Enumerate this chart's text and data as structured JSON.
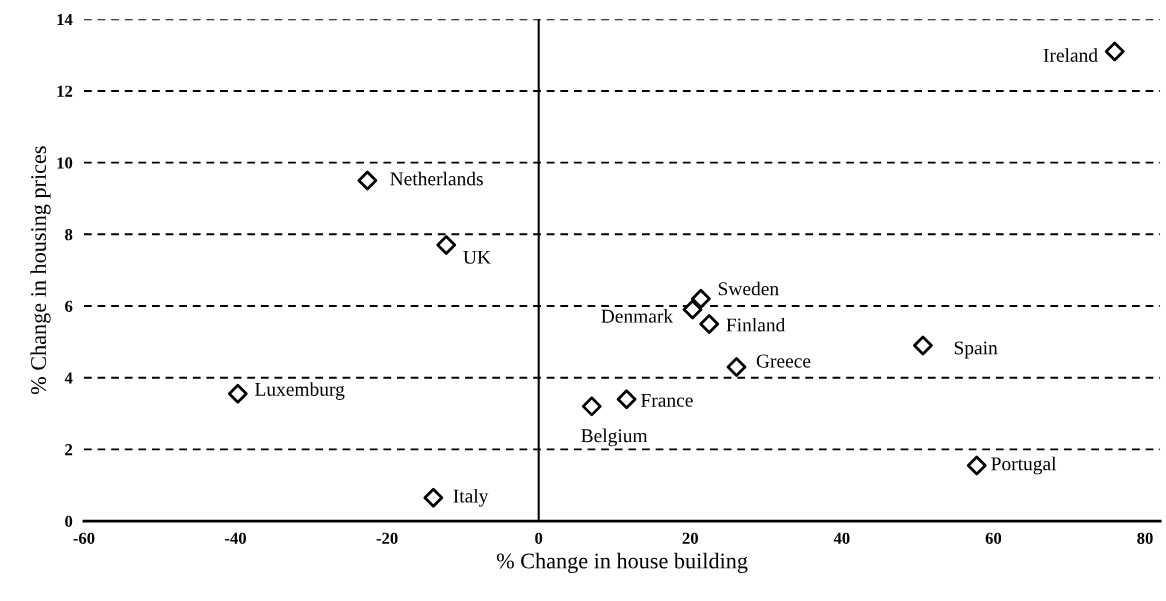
{
  "chart_data": {
    "type": "scatter",
    "xlabel": "% Change in house building",
    "ylabel": "% Change in housing prices",
    "x": [
      76.0,
      -22.6,
      -12.2,
      21.4,
      20.3,
      22.5,
      50.7,
      26.1,
      -39.7,
      11.6,
      7.0,
      57.8,
      -13.9
    ],
    "values": [
      13.1,
      9.5,
      7.7,
      6.2,
      5.9,
      5.5,
      4.9,
      4.3,
      3.55,
      3.4,
      3.2,
      1.55,
      0.65
    ],
    "color": "#000000",
    "marker": "diamond",
    "annotations": [
      {
        "text": "Ireland",
        "x": 76.0,
        "y": 13.1
      },
      {
        "text": "Netherlands",
        "x": -22.6,
        "y": 9.5
      },
      {
        "text": "UK",
        "x": -12.2,
        "y": 7.7
      },
      {
        "text": "Sweden",
        "x": 21.4,
        "y": 6.2
      },
      {
        "text": "Denmark",
        "x": 20.3,
        "y": 5.9
      },
      {
        "text": "Finland",
        "x": 22.5,
        "y": 5.5
      },
      {
        "text": "Spain",
        "x": 50.7,
        "y": 4.9
      },
      {
        "text": "Greece",
        "x": 26.1,
        "y": 4.3
      },
      {
        "text": "Luxemburg",
        "x": -39.7,
        "y": 3.55
      },
      {
        "text": "France",
        "x": 11.6,
        "y": 3.4
      },
      {
        "text": "Belgium",
        "x": 7.0,
        "y": 3.2
      },
      {
        "text": "Portugal",
        "x": 57.8,
        "y": 1.55
      },
      {
        "text": "Italy",
        "x": -13.9,
        "y": 0.65
      }
    ],
    "xlim": [
      -60,
      82
    ],
    "xticks": [
      -60,
      -40,
      -20,
      0,
      20,
      40,
      60,
      80
    ],
    "ylim": [
      0,
      14
    ],
    "yticks": [
      0,
      2,
      4,
      6,
      8,
      10,
      12,
      14
    ],
    "grid": "y",
    "ref_lines": [
      {
        "axis": "x",
        "value": 0,
        "color": "#000000"
      }
    ]
  }
}
